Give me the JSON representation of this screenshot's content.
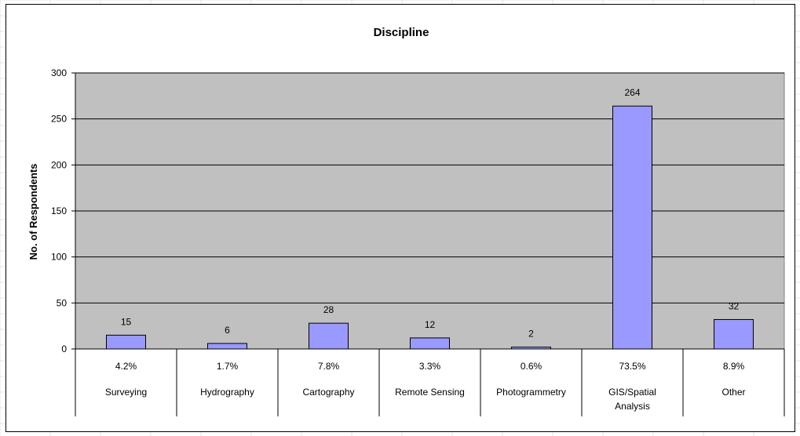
{
  "chart_data": {
    "type": "bar",
    "title": "Discipline",
    "ylabel": "No. of Respondents",
    "xlabel": "",
    "ylim": [
      0,
      300
    ],
    "yticks": [
      0,
      50,
      100,
      150,
      200,
      250,
      300
    ],
    "grid": true,
    "legend": "none",
    "categories": [
      "Surveying",
      "Hydrography",
      "Cartography",
      "Remote Sensing",
      "Photogrammetry",
      "GIS/Spatial Analysis",
      "Other"
    ],
    "category_lines": [
      [
        "Surveying"
      ],
      [
        "Hydrography"
      ],
      [
        "Cartography"
      ],
      [
        "Remote Sensing"
      ],
      [
        "Photogrammetry"
      ],
      [
        "GIS/Spatial",
        "Analysis"
      ],
      [
        "Other"
      ]
    ],
    "values": [
      15,
      6,
      28,
      12,
      2,
      264,
      32
    ],
    "percentages": [
      "4.2%",
      "1.7%",
      "7.8%",
      "3.3%",
      "0.6%",
      "73.5%",
      "8.9%"
    ],
    "colors": {
      "bar_fill": "#9999ff",
      "plot_area": "#c0c0c0",
      "gridline": "#000000"
    }
  }
}
